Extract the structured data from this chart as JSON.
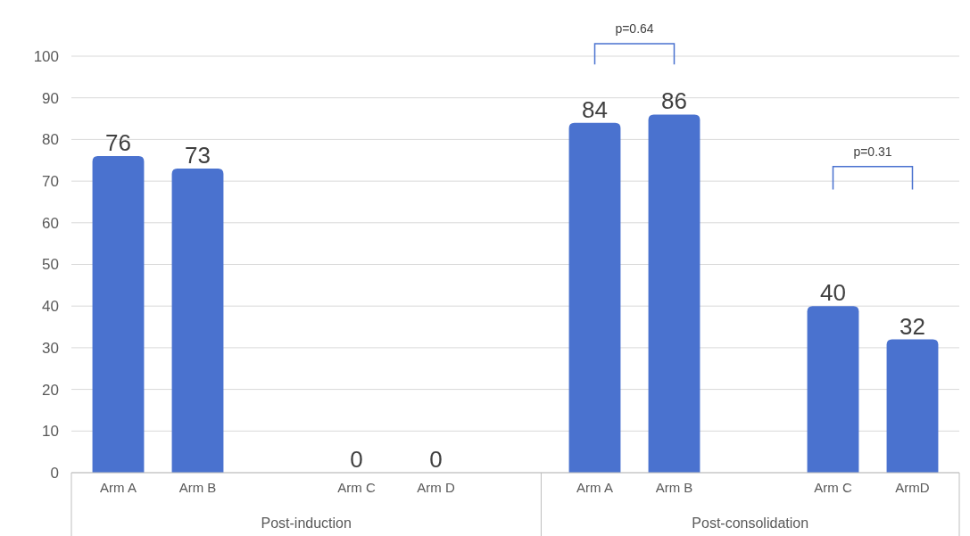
{
  "chart_data": {
    "type": "bar",
    "categories": [
      "Arm A",
      "Arm B",
      null,
      "Arm C",
      "Arm D",
      null,
      "Arm A",
      "Arm B",
      null,
      "Arm C",
      "ArmD"
    ],
    "values": [
      76,
      73,
      null,
      0,
      0,
      null,
      84,
      86,
      null,
      40,
      32
    ],
    "color": "#4a72cf",
    "ylim": [
      0,
      100
    ],
    "yticks": [
      0,
      10,
      20,
      30,
      40,
      50,
      60,
      70,
      80,
      90,
      100
    ],
    "grid": "y",
    "data_labels": true,
    "annotations": [
      "p=0.64",
      "p=0.31",
      "Post-induction",
      "Post-consolidation"
    ]
  }
}
